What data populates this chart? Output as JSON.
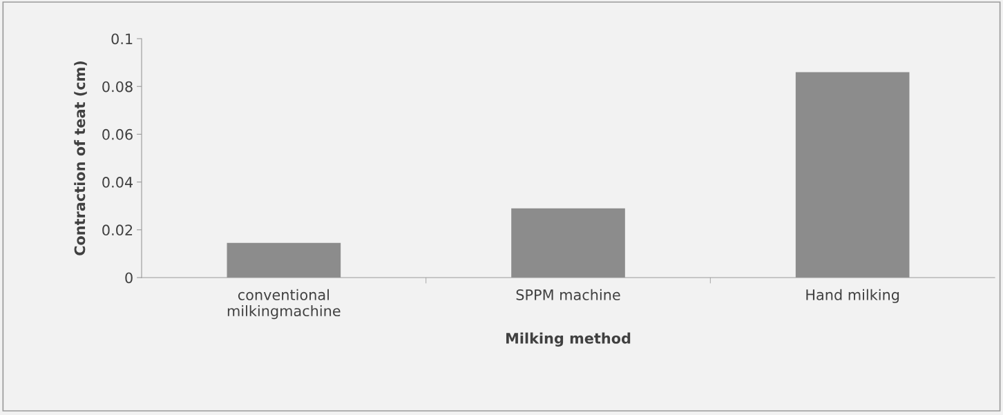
{
  "chart_data": {
    "type": "bar",
    "xlabel": "Milking method",
    "ylabel": "Contraction of teat (cm)",
    "categories": [
      "conventional\nmilkingmachine",
      "SPPM machine",
      "Hand milking"
    ],
    "values": [
      0.0145,
      0.029,
      0.086
    ],
    "color": "#8c8c8c",
    "ylim": [
      0,
      0.1
    ],
    "yticks": [
      0,
      0.02,
      0.04,
      0.06,
      0.08,
      0.1
    ],
    "grid": false
  }
}
